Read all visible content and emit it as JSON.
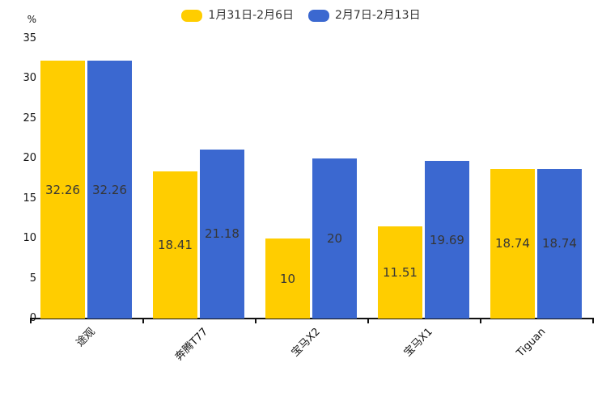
{
  "chart_data": {
    "type": "bar",
    "title": "",
    "categories": [
      "途观",
      "奔腾T77",
      "宝马X2",
      "宝马X1",
      "Tiguan"
    ],
    "series": [
      {
        "name": "1月31日-2月6日",
        "color": "#FFCD00",
        "values": [
          32.26,
          18.41,
          10,
          11.51,
          18.74
        ]
      },
      {
        "name": "2月7日-2月13日",
        "color": "#3B68D0",
        "values": [
          32.26,
          21.18,
          20,
          19.69,
          18.74
        ]
      }
    ],
    "xlabel": "",
    "ylabel": "%",
    "ylim": [
      0,
      35
    ],
    "yticks": [
      0,
      5,
      10,
      15,
      20,
      25,
      30,
      35
    ],
    "grid": false,
    "legend_position": "top",
    "value_labels": true,
    "value_label_color": "#363636",
    "axis_color": "#111111"
  }
}
